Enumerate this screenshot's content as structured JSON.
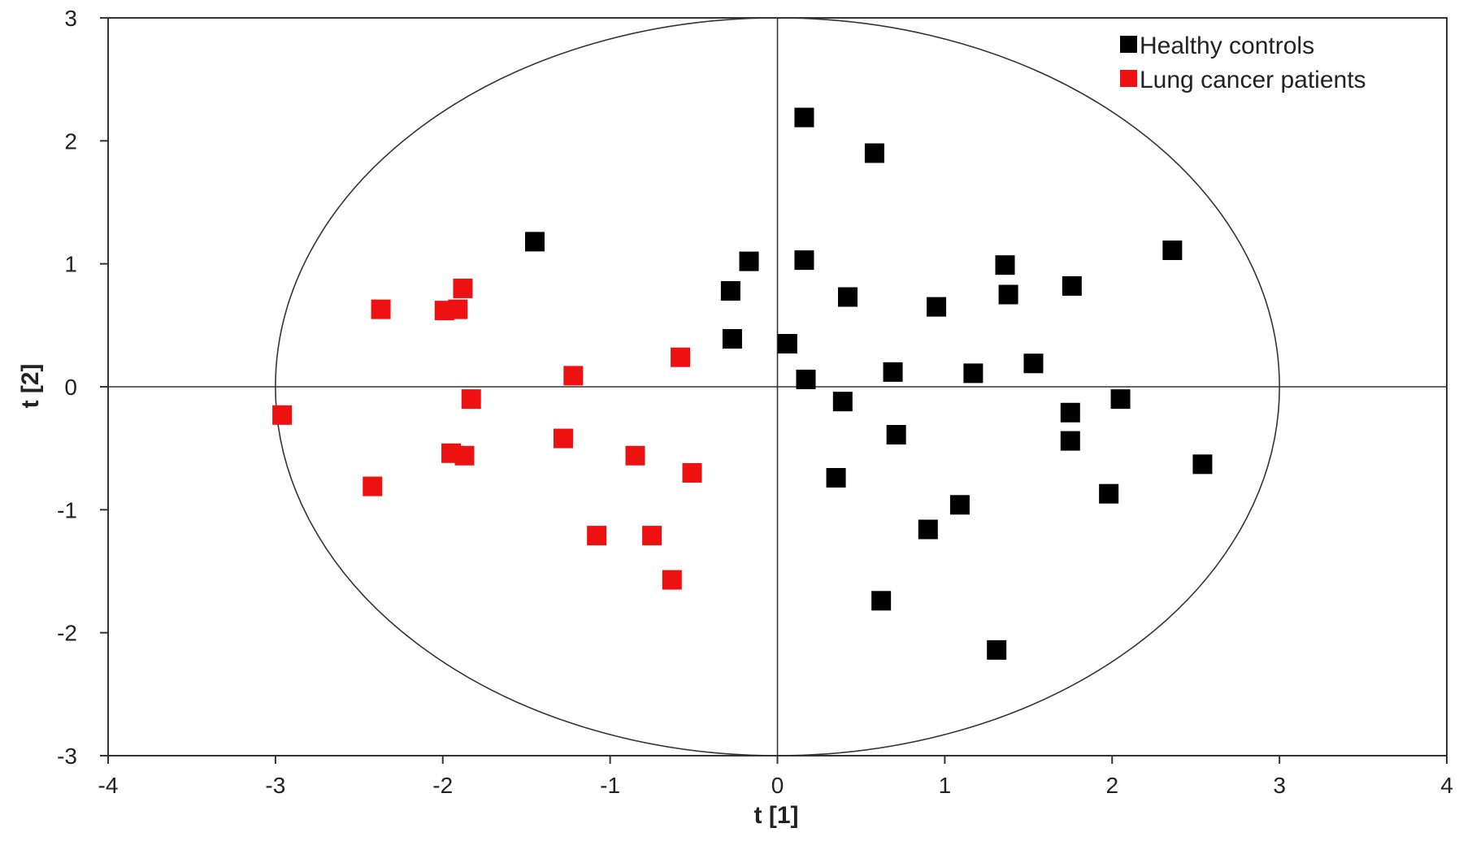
{
  "chart_data": {
    "type": "scatter",
    "title": "",
    "xlabel": "t [1]",
    "ylabel": "t [2]",
    "xlim": [
      -4,
      4
    ],
    "ylim": [
      -3,
      3
    ],
    "xticks": [
      -4,
      -3,
      -2,
      -1,
      0,
      1,
      2,
      3,
      4
    ],
    "yticks": [
      -3,
      -2,
      -1,
      0,
      1,
      2,
      3
    ],
    "xtick_labels": [
      "-4",
      "-3",
      "-2",
      "-1",
      "0",
      "1",
      "2",
      "3",
      "4"
    ],
    "ytick_labels": [
      "-3",
      "-2",
      "-1",
      "0",
      "1",
      "2",
      "3"
    ],
    "grid": false,
    "legend_position": "top-right",
    "marker": "square",
    "ellipse": {
      "center": [
        0,
        0
      ],
      "rx": 3.0,
      "ry": 3.0
    },
    "series": [
      {
        "name": "Healthy controls",
        "color": "#000000",
        "points": [
          [
            0.16,
            2.19
          ],
          [
            0.58,
            1.9
          ],
          [
            -1.45,
            1.18
          ],
          [
            -0.17,
            1.02
          ],
          [
            0.16,
            1.03
          ],
          [
            1.36,
            0.99
          ],
          [
            2.36,
            1.11
          ],
          [
            -0.28,
            0.78
          ],
          [
            0.42,
            0.73
          ],
          [
            0.95,
            0.65
          ],
          [
            1.38,
            0.75
          ],
          [
            1.76,
            0.82
          ],
          [
            -0.27,
            0.39
          ],
          [
            0.06,
            0.35
          ],
          [
            0.17,
            0.06
          ],
          [
            0.69,
            0.12
          ],
          [
            1.17,
            0.11
          ],
          [
            1.53,
            0.19
          ],
          [
            0.39,
            -0.12
          ],
          [
            1.75,
            -0.21
          ],
          [
            2.05,
            -0.1
          ],
          [
            0.71,
            -0.39
          ],
          [
            1.75,
            -0.44
          ],
          [
            2.54,
            -0.63
          ],
          [
            0.35,
            -0.74
          ],
          [
            1.09,
            -0.96
          ],
          [
            1.98,
            -0.87
          ],
          [
            0.9,
            -1.16
          ],
          [
            0.62,
            -1.74
          ],
          [
            1.31,
            -2.14
          ]
        ]
      },
      {
        "name": "Lung cancer patients",
        "color": "#ee1111",
        "points": [
          [
            -2.37,
            0.63
          ],
          [
            -1.99,
            0.62
          ],
          [
            -1.91,
            0.63
          ],
          [
            -1.88,
            0.8
          ],
          [
            -1.22,
            0.09
          ],
          [
            -0.58,
            0.24
          ],
          [
            -2.96,
            -0.23
          ],
          [
            -1.83,
            -0.1
          ],
          [
            -1.28,
            -0.42
          ],
          [
            -1.95,
            -0.54
          ],
          [
            -1.87,
            -0.56
          ],
          [
            -0.85,
            -0.56
          ],
          [
            -0.51,
            -0.7
          ],
          [
            -2.42,
            -0.81
          ],
          [
            -1.08,
            -1.21
          ],
          [
            -0.75,
            -1.21
          ],
          [
            -0.63,
            -1.57
          ]
        ]
      }
    ]
  }
}
